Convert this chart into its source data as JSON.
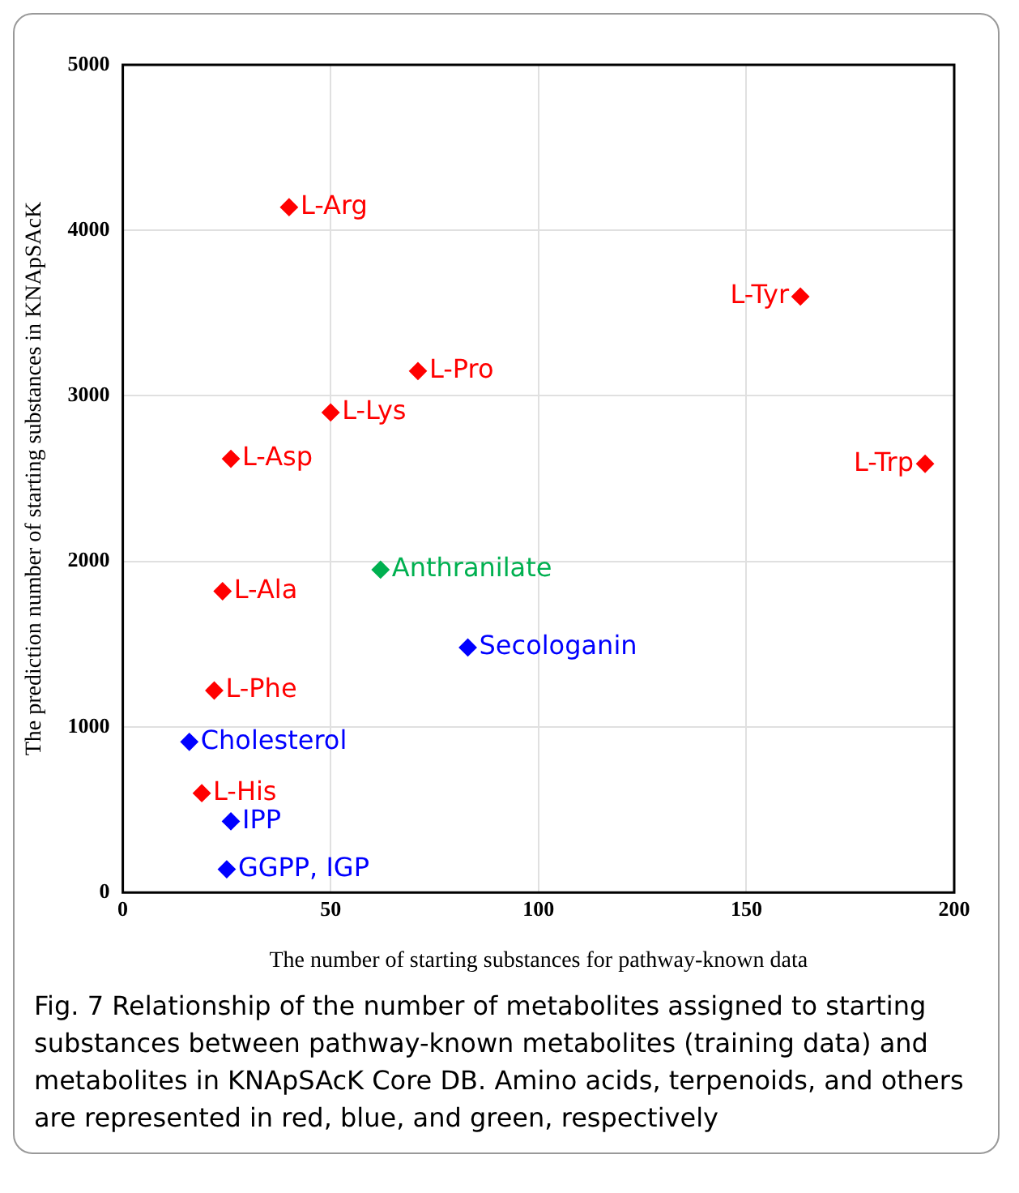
{
  "chart_data": {
    "type": "scatter",
    "xlabel": "The number of starting substances for pathway-known data",
    "ylabel": "The prediction number of starting substances in KNApSAcK",
    "xlim": [
      0,
      200
    ],
    "xticks": [
      0,
      50,
      100,
      150,
      200
    ],
    "ylim": [
      0,
      5000
    ],
    "yticks": [
      0,
      1000,
      2000,
      3000,
      4000,
      5000
    ],
    "grid": true,
    "marker": "diamond",
    "legend": false,
    "series": [
      {
        "color": "#ff0000",
        "x": [
          40,
          163,
          71,
          50,
          26,
          193,
          24,
          22,
          19
        ],
        "values": [
          4140,
          3600,
          3150,
          2900,
          2620,
          2590,
          1820,
          1220,
          600
        ]
      },
      {
        "color": "#0000ff",
        "x": [
          83,
          16,
          26,
          25
        ],
        "values": [
          1480,
          910,
          430,
          140
        ]
      },
      {
        "color": "#00b050",
        "x": [
          62
        ],
        "values": [
          1950
        ]
      }
    ],
    "annotations": [
      {
        "text": "L-Arg",
        "x": 40,
        "y": 4140
      },
      {
        "text": "L-Tyr",
        "x": 163,
        "y": 3600
      },
      {
        "text": "L-Pro",
        "x": 71,
        "y": 3150
      },
      {
        "text": "L-Lys",
        "x": 50,
        "y": 2900
      },
      {
        "text": "L-Asp",
        "x": 26,
        "y": 2620
      },
      {
        "text": "L-Trp",
        "x": 193,
        "y": 2590
      },
      {
        "text": "L-Ala",
        "x": 24,
        "y": 1820
      },
      {
        "text": "L-Phe",
        "x": 22,
        "y": 1220
      },
      {
        "text": "L-His",
        "x": 19,
        "y": 600
      },
      {
        "text": "Secologanin",
        "x": 83,
        "y": 1480
      },
      {
        "text": "Cholesterol",
        "x": 16,
        "y": 910
      },
      {
        "text": "IPP",
        "x": 26,
        "y": 430
      },
      {
        "text": "GGPP, IGP",
        "x": 25,
        "y": 140
      },
      {
        "text": "Anthranilate",
        "x": 62,
        "y": 1950
      },
      "Fig. 7 Relationship of the number of metabolites assigned to starting substances between pathway-known metabolites (training data) and metabolites in KNApSAcK Core DB. Amino acids, terpenoids, and others are represented in red, blue, and green, respectively"
    ]
  }
}
